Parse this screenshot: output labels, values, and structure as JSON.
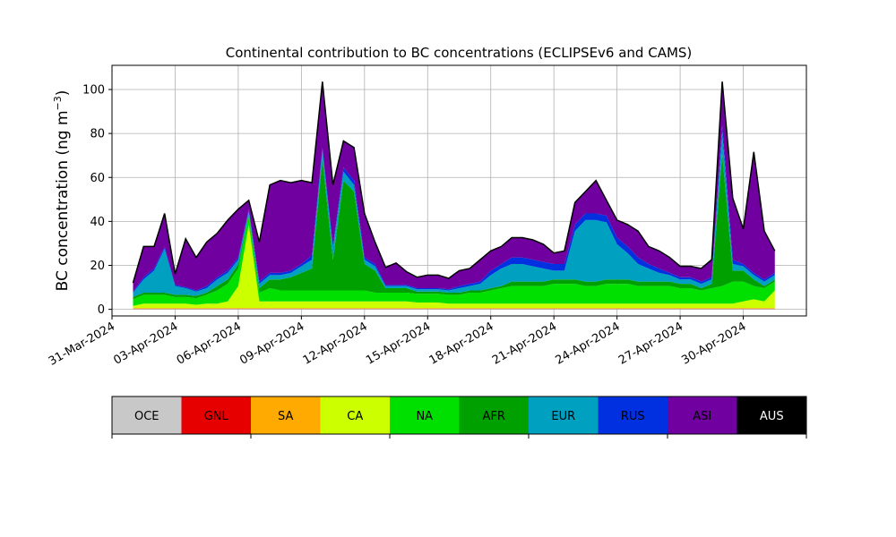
{
  "chart_data": {
    "type": "area",
    "stacked": true,
    "title": "Continental contribution to BC concentrations (ECLIPSEv6 and CAMS)",
    "ylabel": "BC concentration (ng m",
    "ylabel_superscript": "−3",
    "ylabel_close": ")",
    "xlabel": "",
    "xlim": [
      "2024-03-31",
      "2024-05-03"
    ],
    "ylim": [
      -3,
      111
    ],
    "yticks": [
      0,
      20,
      40,
      60,
      80,
      100
    ],
    "xticks": [
      "2024-03-31",
      "2024-04-03",
      "2024-04-06",
      "2024-04-09",
      "2024-04-12",
      "2024-04-15",
      "2024-04-18",
      "2024-04-21",
      "2024-04-24",
      "2024-04-27",
      "2024-04-30"
    ],
    "xtick_labels": [
      "31-Mar-2024",
      "03-Apr-2024",
      "06-Apr-2024",
      "09-Apr-2024",
      "12-Apr-2024",
      "15-Apr-2024",
      "18-Apr-2024",
      "21-Apr-2024",
      "24-Apr-2024",
      "27-Apr-2024",
      "30-Apr-2024"
    ],
    "grid": true,
    "legend_placement": "bottom-colorbar",
    "x": [
      "2024-04-01",
      "2024-04-01 12:00",
      "2024-04-02",
      "2024-04-02 12:00",
      "2024-04-03",
      "2024-04-03 12:00",
      "2024-04-04",
      "2024-04-04 12:00",
      "2024-04-05",
      "2024-04-05 12:00",
      "2024-04-06",
      "2024-04-06 12:00",
      "2024-04-07",
      "2024-04-07 12:00",
      "2024-04-08",
      "2024-04-08 12:00",
      "2024-04-09",
      "2024-04-09 12:00",
      "2024-04-10",
      "2024-04-10 12:00",
      "2024-04-11",
      "2024-04-11 12:00",
      "2024-04-12",
      "2024-04-12 12:00",
      "2024-04-13",
      "2024-04-13 12:00",
      "2024-04-14",
      "2024-04-14 12:00",
      "2024-04-15",
      "2024-04-15 12:00",
      "2024-04-16",
      "2024-04-16 12:00",
      "2024-04-17",
      "2024-04-17 12:00",
      "2024-04-18",
      "2024-04-18 12:00",
      "2024-04-19",
      "2024-04-19 12:00",
      "2024-04-20",
      "2024-04-20 12:00",
      "2024-04-21",
      "2024-04-21 12:00",
      "2024-04-22",
      "2024-04-22 12:00",
      "2024-04-23",
      "2024-04-23 12:00",
      "2024-04-24",
      "2024-04-24 12:00",
      "2024-04-25",
      "2024-04-25 12:00",
      "2024-04-26",
      "2024-04-26 12:00",
      "2024-04-27",
      "2024-04-27 12:00",
      "2024-04-28",
      "2024-04-28 12:00",
      "2024-04-29",
      "2024-04-29 12:00",
      "2024-04-30",
      "2024-04-30 12:00",
      "2024-05-01",
      "2024-05-01 12:00"
    ],
    "series": [
      {
        "name": "OCE",
        "color": "#c8c8c8",
        "values": [
          0.2,
          0.2,
          0.2,
          0.2,
          0.2,
          0.2,
          0.2,
          0.2,
          0.2,
          0.2,
          0.2,
          0.2,
          0.2,
          0.2,
          0.2,
          0.2,
          0.2,
          0.2,
          0.2,
          0.2,
          0.2,
          0.2,
          0.2,
          0.2,
          0.2,
          0.2,
          0.2,
          0.2,
          0.2,
          0.2,
          0.2,
          0.2,
          0.2,
          0.2,
          0.2,
          0.2,
          0.2,
          0.2,
          0.2,
          0.2,
          0.2,
          0.2,
          0.2,
          0.2,
          0.2,
          0.2,
          0.2,
          0.2,
          0.2,
          0.2,
          0.2,
          0.2,
          0.2,
          0.2,
          0.2,
          0.2,
          0.2,
          0.2,
          0.2,
          0.2,
          0.2,
          0.2
        ]
      },
      {
        "name": "GNL",
        "color": "#e60000",
        "values": [
          0.1,
          0.1,
          0.1,
          0.1,
          0.1,
          0.1,
          0.1,
          0.1,
          0.1,
          0.1,
          0.1,
          0.1,
          0.1,
          0.1,
          0.1,
          0.1,
          0.1,
          0.1,
          0.1,
          0.1,
          0.1,
          0.1,
          0.1,
          0.1,
          0.1,
          0.1,
          0.1,
          0.1,
          0.1,
          0.1,
          0.1,
          0.1,
          0.1,
          0.1,
          0.1,
          0.1,
          0.1,
          0.1,
          0.1,
          0.1,
          0.1,
          0.1,
          0.1,
          0.1,
          0.1,
          0.1,
          0.1,
          0.1,
          0.1,
          0.1,
          0.1,
          0.1,
          0.1,
          0.1,
          0.1,
          0.1,
          0.1,
          0.1,
          0.1,
          0.1,
          0.1,
          0.1
        ]
      },
      {
        "name": "SA",
        "color": "#ffaa00",
        "values": [
          0.3,
          0.3,
          0.3,
          0.3,
          0.3,
          0.3,
          0.3,
          0.3,
          0.3,
          0.3,
          0.3,
          0.3,
          0.3,
          0.3,
          0.3,
          0.3,
          0.3,
          0.3,
          0.3,
          0.3,
          0.3,
          0.3,
          0.3,
          0.3,
          0.3,
          0.3,
          0.3,
          0.3,
          0.3,
          0.3,
          0.3,
          0.3,
          0.3,
          0.3,
          0.3,
          0.3,
          0.3,
          0.3,
          0.3,
          0.3,
          0.3,
          0.3,
          0.3,
          0.3,
          0.3,
          0.3,
          0.3,
          0.3,
          0.3,
          0.3,
          0.3,
          0.3,
          0.3,
          0.3,
          0.3,
          0.3,
          0.3,
          0.3,
          0.3,
          0.3,
          0.3,
          0.3
        ]
      },
      {
        "name": "CA",
        "color": "#ccff00",
        "values": [
          1,
          2,
          2,
          2,
          2,
          2,
          1.5,
          2,
          2,
          3,
          10,
          38,
          3,
          3,
          3,
          3,
          3,
          3,
          3,
          3,
          3,
          3,
          3,
          3,
          3,
          3,
          3,
          2.5,
          2.5,
          2.5,
          2,
          2,
          2,
          2,
          2,
          2,
          2,
          2,
          2,
          2,
          2,
          2,
          2,
          2,
          2,
          2,
          2,
          2,
          2,
          2,
          2,
          2,
          2,
          2,
          2,
          2,
          2,
          2,
          3,
          4,
          3,
          8
        ]
      },
      {
        "name": "NA",
        "color": "#00e000",
        "values": [
          3,
          4,
          4,
          4,
          3,
          3,
          3,
          4,
          6,
          8,
          8,
          4,
          4,
          6,
          5,
          5,
          5,
          5,
          5,
          5,
          5,
          5,
          5,
          4,
          4,
          4,
          4,
          4,
          4,
          4,
          4,
          4,
          5,
          5,
          6,
          7,
          8,
          8,
          8,
          8,
          9,
          9,
          9,
          8,
          8,
          9,
          9,
          9,
          8,
          8,
          8,
          8,
          7,
          7,
          6,
          7,
          8,
          10,
          9,
          6,
          6,
          4
        ]
      },
      {
        "name": "AFR",
        "color": "#00a000",
        "values": [
          1,
          1,
          1,
          1,
          1,
          1,
          1,
          1,
          2,
          2,
          2,
          1,
          2,
          4,
          5,
          6,
          8,
          10,
          60,
          14,
          50,
          45,
          12,
          10,
          2,
          2,
          2,
          1,
          1,
          1,
          1,
          1,
          1,
          1,
          1,
          1,
          2,
          2,
          2,
          2,
          2,
          2,
          2,
          2,
          2,
          2,
          2,
          2,
          2,
          2,
          2,
          2,
          2,
          2,
          1,
          2,
          60,
          5,
          5,
          3,
          1,
          1
        ]
      },
      {
        "name": "EUR",
        "color": "#00a0c0",
        "values": [
          2,
          6,
          10,
          20,
          4,
          3,
          2,
          2,
          3,
          3,
          2,
          1,
          2,
          2,
          2,
          2,
          3,
          4,
          4,
          5,
          4,
          3,
          2,
          2,
          1,
          1,
          1,
          1,
          1,
          1,
          1,
          2,
          2,
          3,
          6,
          8,
          8,
          8,
          7,
          6,
          4,
          4,
          22,
          28,
          28,
          26,
          16,
          12,
          8,
          6,
          4,
          3,
          2,
          2,
          2,
          2,
          10,
          3,
          2,
          2,
          2,
          2
        ]
      },
      {
        "name": "RUS",
        "color": "#0030e0",
        "values": [
          0.5,
          1,
          1,
          1,
          0.5,
          0.5,
          0.5,
          1,
          1,
          1,
          1,
          1,
          1,
          1,
          1,
          1,
          1,
          2,
          1,
          1,
          2,
          2,
          1,
          1,
          0.5,
          0.5,
          0.5,
          0.5,
          0.5,
          0.5,
          0.5,
          1,
          1,
          1,
          2,
          2,
          3,
          3,
          3,
          3,
          3,
          3,
          3,
          3,
          3,
          3,
          3,
          3,
          3,
          2,
          2,
          1,
          1,
          1,
          1,
          1,
          3,
          2,
          1,
          1,
          1,
          1
        ]
      },
      {
        "name": "ASI",
        "color": "#7000a0",
        "values": [
          4,
          14,
          10,
          15,
          5,
          22,
          15,
          20,
          20,
          23,
          22,
          4,
          18,
          40,
          42,
          40,
          38,
          33,
          30,
          28,
          12,
          15,
          20,
          10,
          8,
          10,
          6,
          5,
          6,
          6,
          5,
          7,
          7,
          10,
          9,
          8,
          9,
          9,
          9,
          8,
          5,
          6,
          10,
          10,
          15,
          7,
          8,
          10,
          12,
          8,
          8,
          7,
          5,
          5,
          6,
          8,
          20,
          28,
          16,
          55,
          22,
          10
        ]
      },
      {
        "name": "AUS",
        "color": "#000000",
        "values": [
          0,
          0,
          0,
          0,
          0,
          0,
          0,
          0,
          0,
          0,
          0,
          0,
          0,
          0,
          0,
          0,
          0,
          0,
          0,
          0,
          0,
          0,
          0,
          0,
          0,
          0,
          0,
          0,
          0,
          0,
          0,
          0,
          0,
          0,
          0,
          0,
          0,
          0,
          0,
          0,
          0,
          0,
          0,
          0,
          0,
          0,
          0,
          0,
          0,
          0,
          0,
          0,
          0,
          0,
          0,
          0,
          0,
          0,
          0,
          0,
          0,
          0
        ]
      }
    ]
  }
}
